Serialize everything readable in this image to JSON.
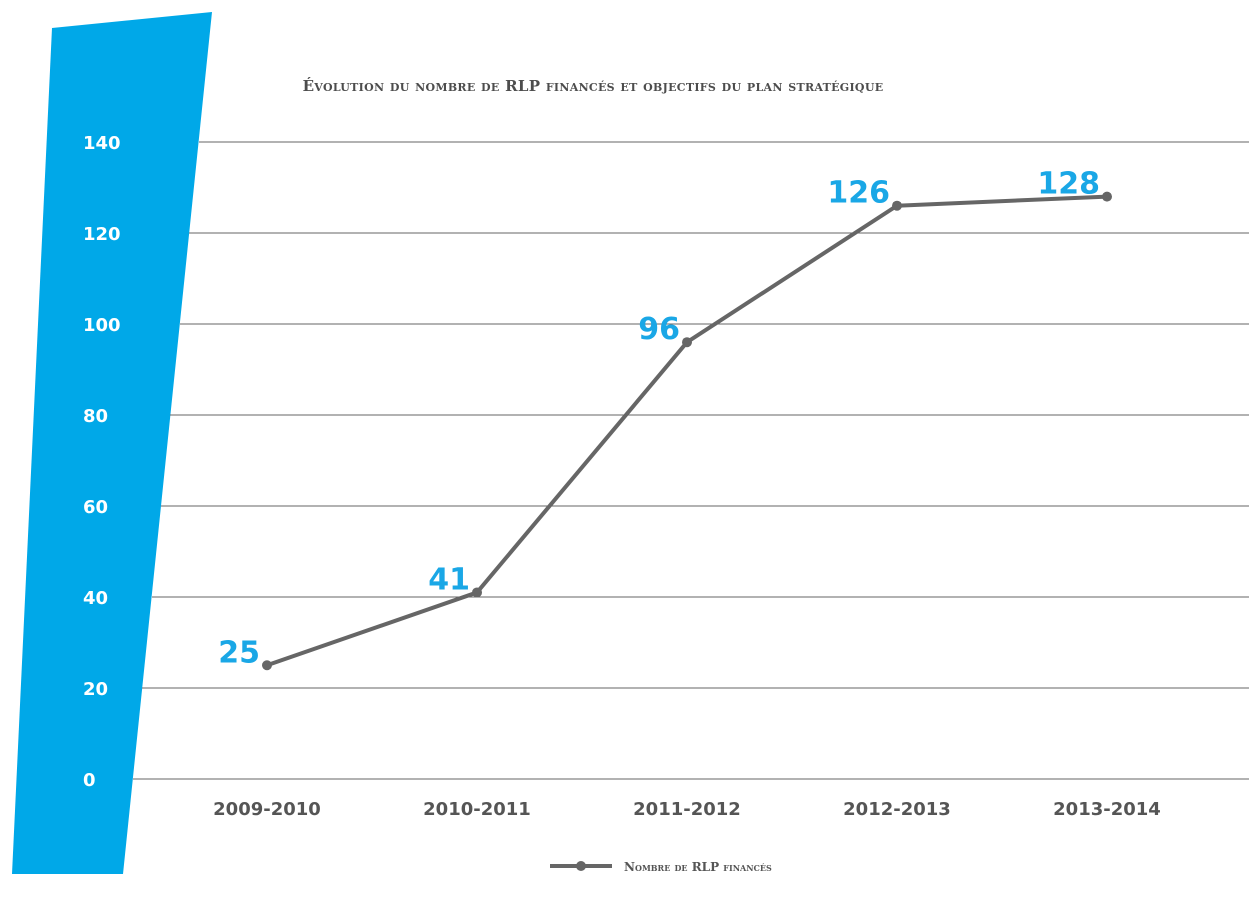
{
  "chart_data": {
    "type": "line",
    "title": "Évolution du nombre de RLP financés et objectifs du plan stratégique",
    "categories": [
      "2009-2010",
      "2010-2011",
      "2011-2012",
      "2012-2013",
      "2013-2014"
    ],
    "series": [
      {
        "name": "Nombre de RLP financés",
        "values": [
          25,
          41,
          96,
          126,
          128
        ],
        "data_labels": [
          "25",
          "41",
          "96",
          "126",
          "128"
        ],
        "color": "#666666"
      }
    ],
    "yticks": [
      "0",
      "20",
      "40",
      "60",
      "80",
      "100",
      "120",
      "140"
    ],
    "ylim": [
      0,
      140
    ],
    "grid": true,
    "legend_position": "bottom-center",
    "accent_color": "#1aa7e6"
  }
}
